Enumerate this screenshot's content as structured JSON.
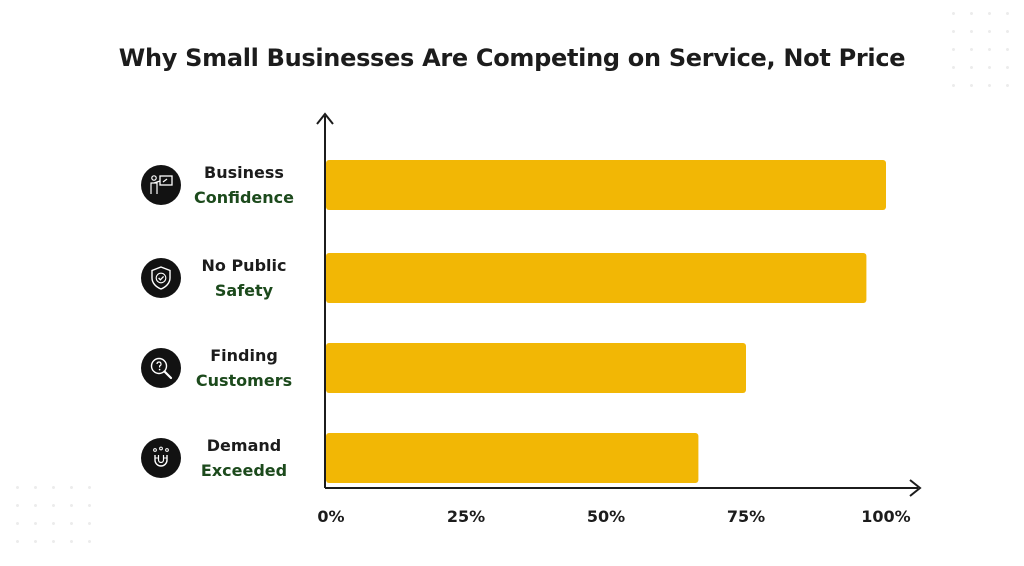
{
  "chart_data": {
    "type": "bar",
    "orientation": "horizontal",
    "title": "Why Small Businesses Are Competing on Service, Not Price",
    "categories": [
      {
        "line1": "Business",
        "line2": "Confidence",
        "icon": "presentation-icon"
      },
      {
        "line1": "No Public",
        "line2": "Safety",
        "icon": "shield-check-icon"
      },
      {
        "line1": "Finding",
        "line2": "Customers",
        "icon": "magnifier-question-icon"
      },
      {
        "line1": "Demand",
        "line2": "Exceeded",
        "icon": "magnet-icon"
      }
    ],
    "values": [
      100,
      96.5,
      75,
      66.5
    ],
    "xlim": [
      0,
      100
    ],
    "xticks": [
      "0%",
      "25%",
      "50%",
      "75%",
      "100%"
    ],
    "tick_values": [
      0,
      25,
      50,
      75,
      100
    ],
    "bar_color": "#f2b705",
    "icon_bg": "#121212",
    "label_accent": "#1c4a1c",
    "grid": false,
    "legend": "none"
  }
}
